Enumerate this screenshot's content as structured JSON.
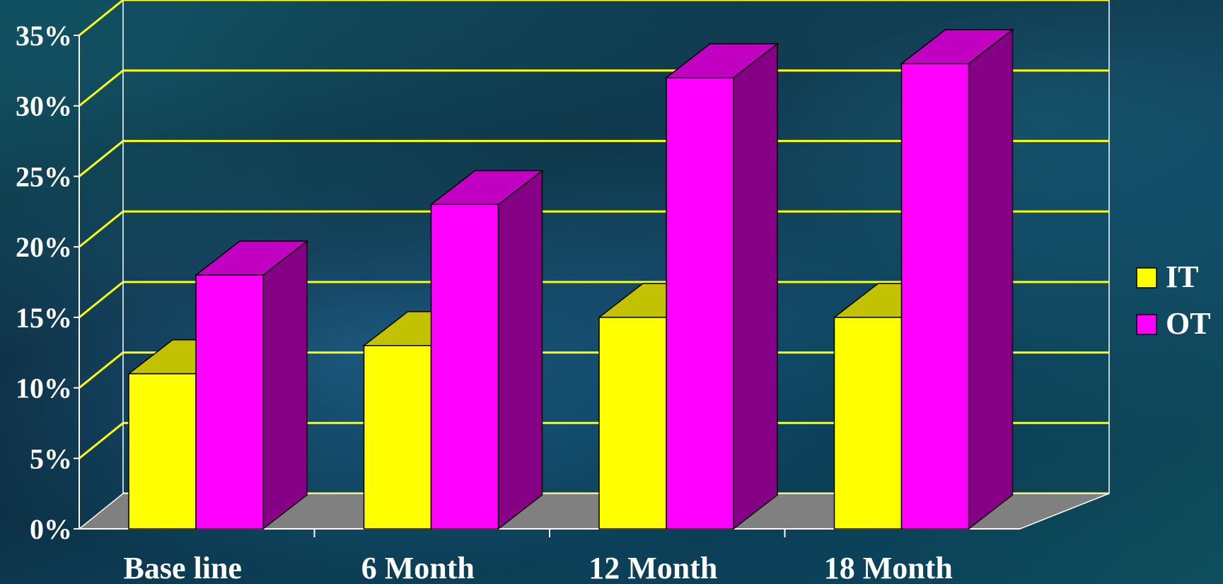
{
  "chart_data": {
    "type": "bar",
    "categories": [
      "Base line",
      "6 Month",
      "12 Month",
      "18 Month"
    ],
    "series": [
      {
        "name": "IT",
        "values": [
          11,
          13,
          15,
          15
        ],
        "color": "#ffff00"
      },
      {
        "name": "OT",
        "values": [
          18,
          23,
          32,
          33
        ],
        "color": "#ff00ff"
      }
    ],
    "ylim": [
      0,
      35
    ],
    "y_ticks": [
      "0%",
      "5%",
      "10%",
      "15%",
      "20%",
      "25%",
      "30%",
      "35%"
    ],
    "grid": true,
    "grid_color": "#ffff00",
    "legend_position": "right",
    "three_d": true
  }
}
